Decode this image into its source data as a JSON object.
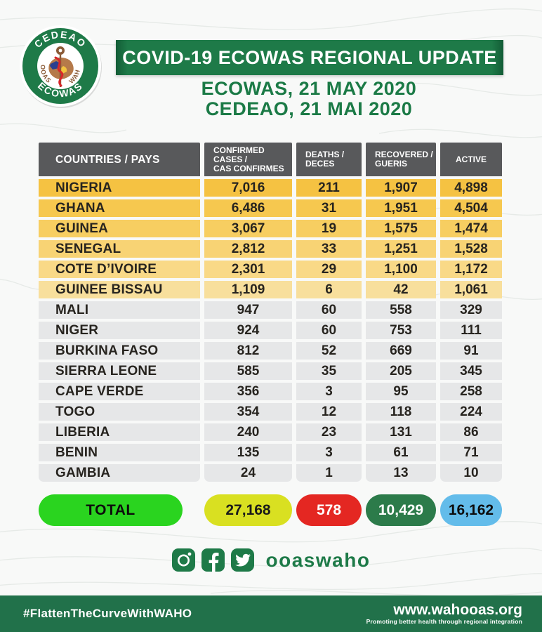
{
  "header": {
    "banner_title": "COVID-19 ECOWAS REGIONAL UPDATE",
    "date_line1": "ECOWAS, 21 MAY 2020",
    "date_line2": "CEDEAO, 21 MAI 2020",
    "logo": {
      "ring_top": "CEDEAO",
      "ring_bottom": "ECOWAS",
      "inner_left": "OOAS",
      "inner_right": "WAHO"
    }
  },
  "table": {
    "columns": [
      "COUNTRIES / PAYS",
      "CONFIRMED CASES /\nCAS CONFIRMES",
      "DEATHS /\nDECES",
      "RECOVERED /\nGUERIS",
      "ACTIVE"
    ],
    "rows": [
      {
        "country": "NIGERIA",
        "confirmed": "7,016",
        "deaths": "211",
        "recovered": "1,907",
        "active": "4,898",
        "row_color": "#f5c242"
      },
      {
        "country": "GHANA",
        "confirmed": "6,486",
        "deaths": "31",
        "recovered": "1,951",
        "active": "4,504",
        "row_color": "#f6c84f"
      },
      {
        "country": "GUINEA",
        "confirmed": "3,067",
        "deaths": "19",
        "recovered": "1,575",
        "active": "1,474",
        "row_color": "#f7ce61"
      },
      {
        "country": "SENEGAL",
        "confirmed": "2,812",
        "deaths": "33",
        "recovered": "1,251",
        "active": "1,528",
        "row_color": "#f8d374"
      },
      {
        "country": "COTE D’IVOIRE",
        "confirmed": "2,301",
        "deaths": "29",
        "recovered": "1,100",
        "active": "1,172",
        "row_color": "#f9d987"
      },
      {
        "country": "GUINEE BISSAU",
        "confirmed": "1,109",
        "deaths": "6",
        "recovered": "42",
        "active": "1,061",
        "row_color": "#f8df9c"
      },
      {
        "country": "MALI",
        "confirmed": "947",
        "deaths": "60",
        "recovered": "558",
        "active": "329",
        "row_color": "#e6e7e8"
      },
      {
        "country": "NIGER",
        "confirmed": "924",
        "deaths": "60",
        "recovered": "753",
        "active": "111",
        "row_color": "#e6e7e8"
      },
      {
        "country": "BURKINA FASO",
        "confirmed": "812",
        "deaths": "52",
        "recovered": "669",
        "active": "91",
        "row_color": "#e6e7e8"
      },
      {
        "country": "SIERRA LEONE",
        "confirmed": "585",
        "deaths": "35",
        "recovered": "205",
        "active": "345",
        "row_color": "#e6e7e8"
      },
      {
        "country": "CAPE VERDE",
        "confirmed": "356",
        "deaths": "3",
        "recovered": "95",
        "active": "258",
        "row_color": "#e6e7e8"
      },
      {
        "country": "TOGO",
        "confirmed": "354",
        "deaths": "12",
        "recovered": "118",
        "active": "224",
        "row_color": "#e6e7e8"
      },
      {
        "country": "LIBERIA",
        "confirmed": "240",
        "deaths": "23",
        "recovered": "131",
        "active": "86",
        "row_color": "#e6e7e8"
      },
      {
        "country": "BENIN",
        "confirmed": "135",
        "deaths": "3",
        "recovered": "61",
        "active": "71",
        "row_color": "#e6e7e8"
      },
      {
        "country": "GAMBIA",
        "confirmed": "24",
        "deaths": "1",
        "recovered": "13",
        "active": "10",
        "row_color": "#e6e7e8"
      }
    ],
    "total": {
      "label": "TOTAL",
      "confirmed": "27,168",
      "deaths": "578",
      "recovered": "10,429",
      "active": "16,162"
    }
  },
  "social": {
    "handle": "ooaswaho",
    "icons": [
      "instagram-icon",
      "facebook-icon",
      "twitter-icon"
    ]
  },
  "footer": {
    "hashtag": "#FlattenTheCurveWithWAHO",
    "website": "www.wahooas.org",
    "tagline": "Promoting better health through regional integration"
  },
  "theme": {
    "banner_green": "#1e7a48",
    "date_green": "#1b7a46",
    "header_gray": "#58595b",
    "total_green": "#2ad41f",
    "confirmed_yellow": "#d9e021",
    "deaths_red": "#e42722",
    "recovered_green": "#2c7b4a",
    "active_blue": "#63bcea",
    "footer_green": "#21714a"
  }
}
